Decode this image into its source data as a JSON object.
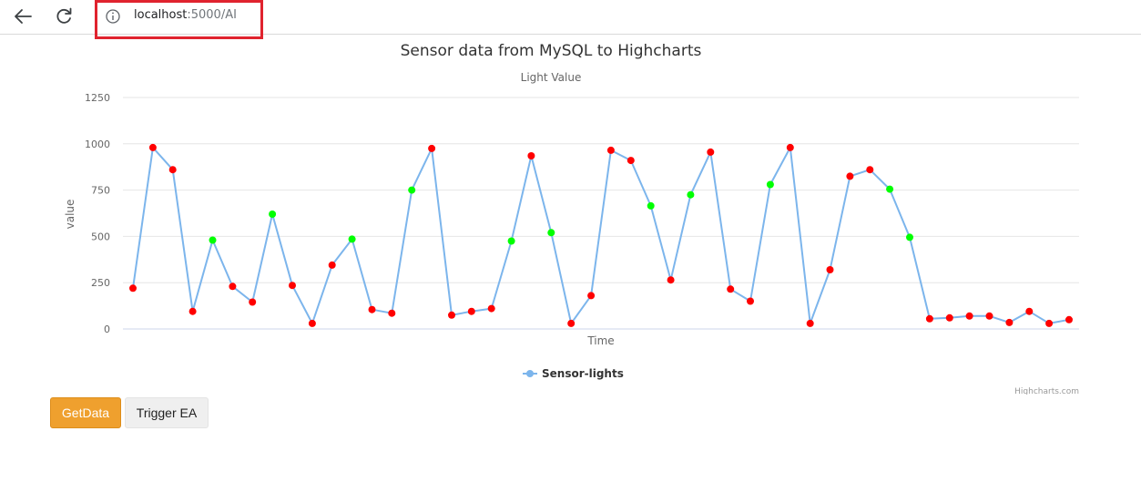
{
  "browser": {
    "url_host": "localhost",
    "url_path": ":5000/AI"
  },
  "chart_data": {
    "type": "line",
    "title": "Sensor data from MySQL to Highcharts",
    "subtitle": "Light Value",
    "xlabel": "Time",
    "ylabel": "value",
    "ylim": [
      0,
      1250
    ],
    "yticks": [
      "0",
      "250",
      "500",
      "750",
      "1000",
      "1250"
    ],
    "grid": true,
    "legend": "bottom-center",
    "credits": "Highcharts.com",
    "line_color": "#7cb5ec",
    "point_colors": {
      "low": "#ff0000",
      "high": "#00ff00"
    },
    "series": [
      {
        "name": "Sensor-lights",
        "values": [
          220,
          980,
          860,
          95,
          480,
          230,
          145,
          620,
          235,
          30,
          345,
          485,
          105,
          85,
          750,
          975,
          75,
          95,
          110,
          475,
          935,
          520,
          30,
          180,
          965,
          910,
          665,
          265,
          725,
          955,
          215,
          150,
          780,
          980,
          30,
          320,
          825,
          860,
          755,
          495,
          55,
          60,
          70,
          70,
          35,
          95,
          30,
          50
        ],
        "point_color_keys": [
          "low",
          "low",
          "low",
          "low",
          "high",
          "low",
          "low",
          "high",
          "low",
          "low",
          "low",
          "high",
          "low",
          "low",
          "high",
          "low",
          "low",
          "low",
          "low",
          "high",
          "low",
          "high",
          "low",
          "low",
          "low",
          "low",
          "high",
          "low",
          "high",
          "low",
          "low",
          "low",
          "high",
          "low",
          "low",
          "low",
          "low",
          "low",
          "high",
          "high",
          "low",
          "low",
          "low",
          "low",
          "low",
          "low",
          "low",
          "low"
        ]
      }
    ]
  },
  "buttons": {
    "getdata_label": "GetData",
    "trigger_label": "Trigger EA"
  }
}
